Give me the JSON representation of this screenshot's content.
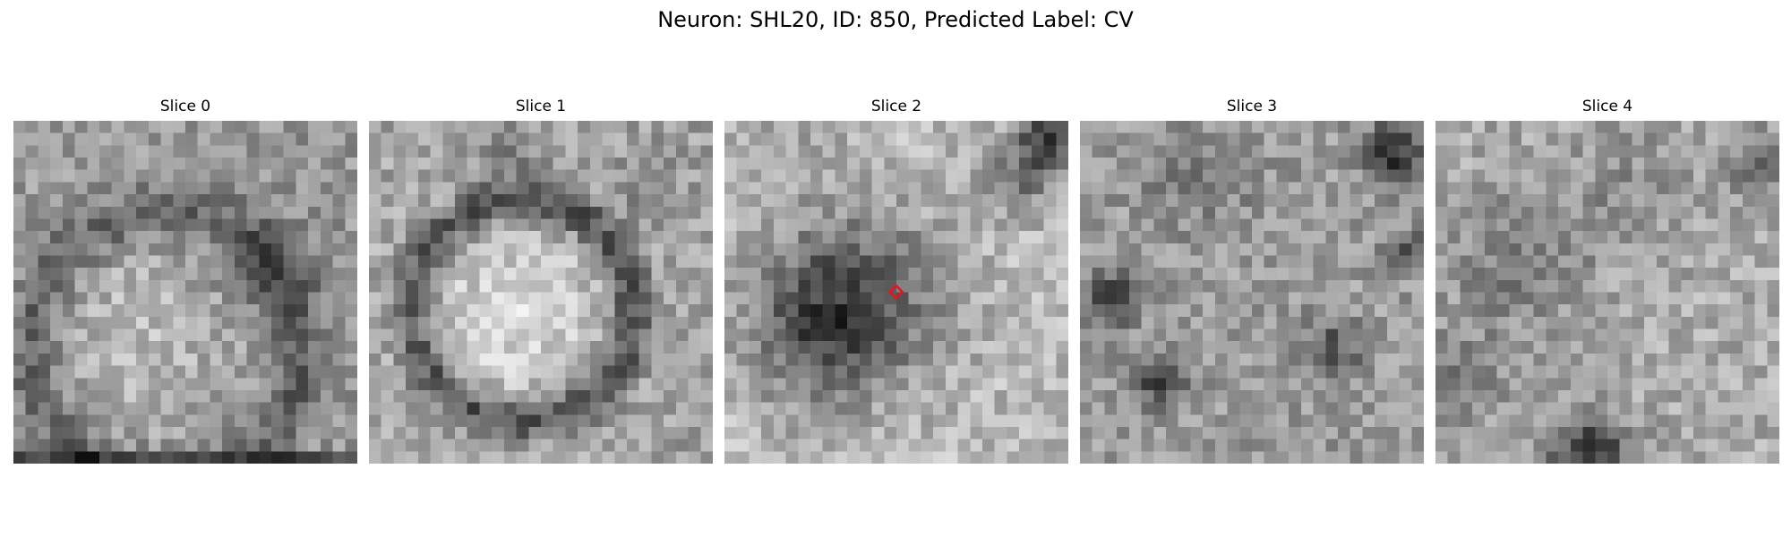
{
  "figure": {
    "title": "Neuron: SHL20, ID: 850, Predicted Label: CV"
  },
  "slices": [
    {
      "label": "Slice 0"
    },
    {
      "label": "Slice 1"
    },
    {
      "label": "Slice 2"
    },
    {
      "label": "Slice 3"
    },
    {
      "label": "Slice 4"
    }
  ],
  "marker": {
    "slice": "Slice 2",
    "color": "#e8141b"
  }
}
